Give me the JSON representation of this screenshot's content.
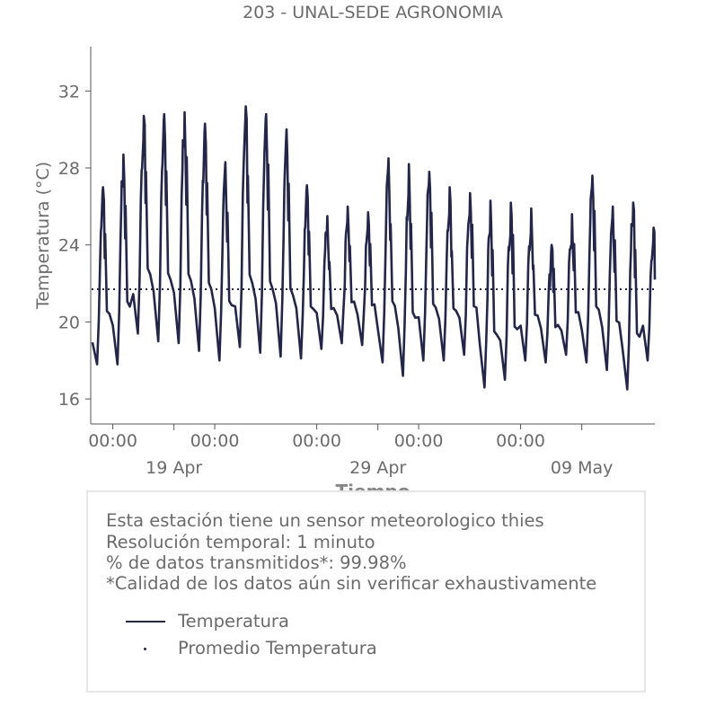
{
  "chart_data": {
    "type": "line",
    "title": "203 - UNAL-SEDE AGRONOMIA",
    "xlabel": "Tiempo",
    "ylabel": "Temperatura (°C)",
    "ylim": [
      14.7,
      34.3
    ],
    "yticks": [
      16,
      20,
      24,
      28,
      32
    ],
    "x_range": [
      "2025-04-14T22:00",
      "2025-05-12T14:00"
    ],
    "x_major_ticks": [
      {
        "date": "2025-04-19",
        "label": "19 Apr"
      },
      {
        "date": "2025-04-29",
        "label": "29 Apr"
      },
      {
        "date": "2025-05-09",
        "label": "09 May"
      }
    ],
    "x_minor_tick_label": "00:00",
    "x_minor_ticks": [
      "2025-04-16T00:00",
      "2025-04-21T00:00",
      "2025-04-26T00:00",
      "2025-05-01T00:00",
      "2025-05-06T00:00"
    ],
    "grid": false,
    "colors": {
      "series": "#23254a",
      "text": "#6b6b6b",
      "box_border": "#e6e6e6"
    },
    "series": [
      {
        "name": "Temperatura",
        "style": "solid",
        "daily": [
          {
            "date": "2025-04-15",
            "min": 17.8,
            "max": 27.0
          },
          {
            "date": "2025-04-16",
            "min": 17.8,
            "max": 28.7
          },
          {
            "date": "2025-04-17",
            "min": 19.4,
            "max": 30.7
          },
          {
            "date": "2025-04-18",
            "min": 19.0,
            "max": 30.8
          },
          {
            "date": "2025-04-19",
            "min": 18.9,
            "max": 30.9
          },
          {
            "date": "2025-04-20",
            "min": 18.5,
            "max": 30.3
          },
          {
            "date": "2025-04-21",
            "min": 18.0,
            "max": 28.3
          },
          {
            "date": "2025-04-22",
            "min": 18.7,
            "max": 31.2
          },
          {
            "date": "2025-04-23",
            "min": 18.4,
            "max": 30.8
          },
          {
            "date": "2025-04-24",
            "min": 18.2,
            "max": 30.0
          },
          {
            "date": "2025-04-25",
            "min": 18.1,
            "max": 27.1
          },
          {
            "date": "2025-04-26",
            "min": 18.6,
            "max": 25.5
          },
          {
            "date": "2025-04-27",
            "min": 18.9,
            "max": 26.0
          },
          {
            "date": "2025-04-28",
            "min": 18.8,
            "max": 25.7
          },
          {
            "date": "2025-04-29",
            "min": 17.9,
            "max": 28.5
          },
          {
            "date": "2025-04-30",
            "min": 17.2,
            "max": 28.2
          },
          {
            "date": "2025-05-01",
            "min": 18.0,
            "max": 27.8
          },
          {
            "date": "2025-05-02",
            "min": 18.0,
            "max": 27.0
          },
          {
            "date": "2025-05-03",
            "min": 18.3,
            "max": 26.7
          },
          {
            "date": "2025-05-04",
            "min": 16.6,
            "max": 26.3
          },
          {
            "date": "2025-05-05",
            "min": 17.0,
            "max": 26.2
          },
          {
            "date": "2025-05-06",
            "min": 18.0,
            "max": 25.9
          },
          {
            "date": "2025-05-07",
            "min": 17.9,
            "max": 24.0
          },
          {
            "date": "2025-05-08",
            "min": 18.3,
            "max": 25.6
          },
          {
            "date": "2025-05-09",
            "min": 17.9,
            "max": 27.6
          },
          {
            "date": "2025-05-10",
            "min": 17.5,
            "max": 26.0
          },
          {
            "date": "2025-05-11",
            "min": 16.5,
            "max": 26.2
          },
          {
            "date": "2025-05-12",
            "min": 18.0,
            "max": 24.9
          }
        ],
        "end": {
          "date": "2025-05-12T14:00",
          "value": 22.2
        }
      },
      {
        "name": "Promedio Temperatura",
        "style": "dotted",
        "value": 21.7
      }
    ]
  },
  "info": {
    "lines": [
      "Esta estación tiene un sensor meteorologico thies",
      "Resolución temporal: 1 minuto",
      "% de datos transmitidos*: 99.98%",
      "*Calidad de los datos aún sin verificar exhaustivamente"
    ]
  }
}
